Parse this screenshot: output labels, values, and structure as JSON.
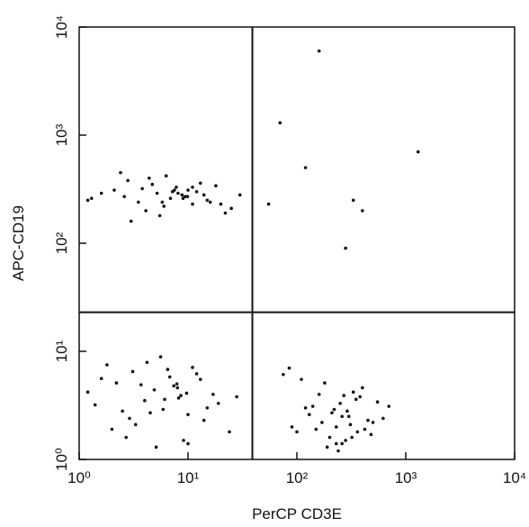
{
  "chart_data": {
    "type": "scatter",
    "x_label": "PerCP CD3E",
    "y_label": "APC-CD19",
    "log_x": true,
    "log_y": true,
    "color": "#111111",
    "xlim": [
      1,
      10000
    ],
    "ylim": [
      1,
      10000
    ],
    "xticks": [
      {
        "value": 1,
        "label": "10⁰"
      },
      {
        "value": 10,
        "label": "10¹"
      },
      {
        "value": 100,
        "label": "10²"
      },
      {
        "value": 1000,
        "label": "10³"
      },
      {
        "value": 10000,
        "label": "10⁴"
      }
    ],
    "yticks": [
      {
        "value": 1,
        "label": "10⁰"
      },
      {
        "value": 10,
        "label": "10¹"
      },
      {
        "value": 100,
        "label": "10²"
      },
      {
        "value": 1000,
        "label": "10³"
      },
      {
        "value": 10000,
        "label": "10⁴"
      }
    ],
    "gates": {
      "x": 39,
      "y": 23
    },
    "x": [
      1.3,
      2.1,
      3.5,
      5.2,
      7.8,
      9.4,
      12,
      15,
      2.8,
      4.1,
      6.3,
      8.8,
      11,
      18,
      25,
      1.6,
      3.0,
      4.7,
      6.9,
      10,
      14,
      22,
      2.4,
      5.8,
      7.2,
      9.9,
      13,
      3.8,
      6.0,
      8.1,
      1.2,
      2.6,
      4.4,
      11,
      16,
      30,
      5.5,
      7.5,
      9.0,
      20,
      1.4,
      2.2,
      3.3,
      4.9,
      6.5,
      8.2,
      10,
      13,
      17,
      24,
      1.8,
      2.9,
      4.0,
      5.6,
      7.4,
      9.1,
      12,
      15,
      2.5,
      3.7,
      5.1,
      6.8,
      8.6,
      11,
      1.2,
      2.0,
      3.1,
      4.5,
      6.1,
      7.9,
      9.7,
      14,
      19,
      1.6,
      2.7,
      4.2,
      5.9,
      8.0,
      10,
      28,
      90,
      140,
      200,
      260,
      330,
      420,
      550,
      110,
      170,
      230,
      290,
      380,
      480,
      75,
      130,
      190,
      250,
      310,
      400,
      620,
      100,
      160,
      220,
      280,
      350,
      450,
      85,
      150,
      210,
      270,
      320,
      500,
      120,
      180,
      240,
      300,
      360,
      700,
      230,
      260,
      160,
      70,
      120,
      1300,
      280,
      330,
      400,
      55
    ],
    "values": [
      260,
      310,
      240,
      290,
      330,
      270,
      300,
      250,
      380,
      200,
      420,
      280,
      230,
      340,
      210,
      290,
      160,
      350,
      260,
      310,
      280,
      190,
      450,
      240,
      300,
      270,
      360,
      320,
      220,
      290,
      250,
      270,
      400,
      330,
      240,
      280,
      180,
      310,
      260,
      230,
      3.2,
      5.1,
      2.1,
      4.4,
      6.8,
      3.7,
      2.6,
      5.5,
      4.0,
      1.8,
      7.5,
      2.4,
      3.5,
      8.9,
      4.8,
      1.5,
      6.2,
      3.0,
      2.8,
      4.9,
      1.3,
      5.8,
      3.9,
      7.1,
      4.2,
      1.9,
      6.5,
      2.7,
      3.6,
      5.0,
      4.1,
      2.3,
      3.3,
      5.6,
      1.6,
      7.9,
      2.9,
      4.6,
      1.4,
      3.8,
      2.0,
      3.1,
      1.6,
      2.5,
      4.2,
      1.9,
      3.4,
      5.5,
      2.2,
      1.4,
      2.8,
      3.8,
      1.7,
      6.1,
      2.6,
      1.3,
      3.3,
      2.1,
      4.6,
      2.4,
      1.8,
      4.0,
      2.9,
      1.5,
      3.6,
      2.3,
      7.0,
      1.9,
      2.7,
      3.9,
      1.6,
      2.2,
      3.0,
      5.1,
      1.2,
      2.5,
      1.8,
      3.1,
      2.0,
      1.4,
      6000,
      1300,
      500,
      700,
      90,
      250,
      200,
      230
    ]
  }
}
